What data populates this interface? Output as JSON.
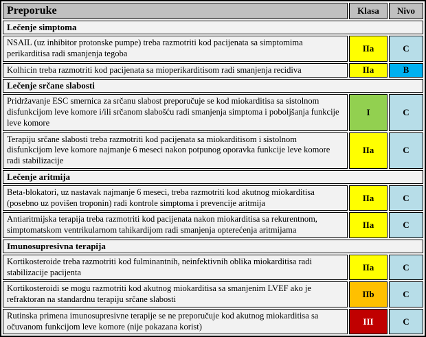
{
  "header": {
    "recommendations_label": "Preporuke",
    "class_label": "Klasa",
    "level_label": "Nivo"
  },
  "colors": {
    "header_bg": "#c0c0c0",
    "row_bg": "#f2f2f2",
    "class_I": "#92d050",
    "class_IIa": "#ffff00",
    "class_IIb": "#ffc000",
    "class_III": "#c00000",
    "class_III_text": "#ffffff",
    "level_B": "#00b0f0",
    "level_C": "#b7dde8"
  },
  "sections": [
    {
      "title": "Lečenje simptoma",
      "rows": [
        {
          "text": "NSAIL (uz inhibitor protonske pumpe) treba razmotriti kod pacijenata sa simptomima perikarditisa radi smanjenja tegoba",
          "class": "IIa",
          "level": "C"
        },
        {
          "text": "Kolhicin treba razmotriti kod pacijenata sa mioperikarditisom radi smanjenja recidiva",
          "class": "IIa",
          "level": "B"
        }
      ]
    },
    {
      "title": "Lečenje srčane slabosti",
      "rows": [
        {
          "text": "Pridržavanje ESC smernica za srčanu slabost preporučuje se kod miokarditisa sa sistolnom disfunkcijom leve komore i/ili srčanom slabošću radi smanjenja simptoma i poboljšanja funkcije leve komore",
          "class": "I",
          "level": "C"
        },
        {
          "text": "Terapiju srčane slabosti treba razmotriti kod pacijenata sa miokarditisom i sistolnom disfunkcijom leve komore najmanje 6 meseci nakon potpunog oporavka funkcije leve komore radi stabilizacije",
          "class": "IIa",
          "level": "C"
        }
      ]
    },
    {
      "title": "Lečenje aritmija",
      "rows": [
        {
          "text": "Beta-blokatori, uz nastavak najmanje 6 meseci, treba razmotriti kod akutnog miokarditisa (posebno uz povišen troponin) radi kontrole simptoma i prevencije aritmija",
          "class": "IIa",
          "level": "C"
        },
        {
          "text": "Antiaritmijska terapija treba razmotriti kod pacijenata nakon miokarditisa sa rekurentnom, simptomatskom ventrikularnom tahikardijom radi smanjenja opterećenja aritmijama",
          "class": "IIa",
          "level": "C"
        }
      ]
    },
    {
      "title": "Imunosupresivna terapija",
      "rows": [
        {
          "text": "Kortikosteroide treba razmotriti kod fulminantnih, neinfektivnih oblika miokarditisa radi stabilizacije pacijenta",
          "class": "IIa",
          "level": "C"
        },
        {
          "text": "Kortikosteroidi se mogu razmotriti kod akutnog miokarditisa sa smanjenim LVEF ako je refraktoran na standardnu terapiju srčane slabosti",
          "class": "IIb",
          "level": "C"
        },
        {
          "text": "Rutinska primena imunosupresivne terapije se ne preporučuje kod akutnog miokarditisa sa očuvanom funkcijom leve komore (nije pokazana korist)",
          "class": "III",
          "level": "C"
        }
      ]
    }
  ]
}
